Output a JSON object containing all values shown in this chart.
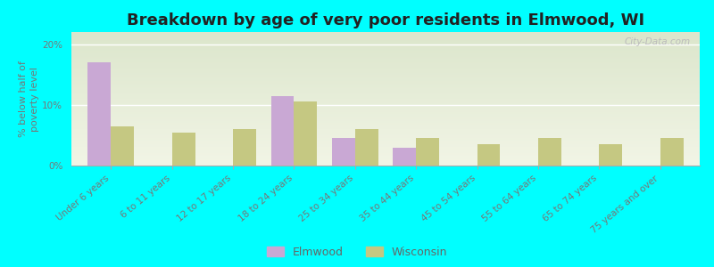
{
  "title": "Breakdown by age of very poor residents in Elmwood, WI",
  "ylabel": "% below half of\npoverty level",
  "background_color": "#00FFFF",
  "plot_bg_top": "#dce6cc",
  "plot_bg_bottom": "#f0f5e8",
  "categories": [
    "Under 6 years",
    "6 to 11 years",
    "12 to 17 years",
    "18 to 24 years",
    "25 to 34 years",
    "35 to 44 years",
    "45 to 54 years",
    "55 to 64 years",
    "65 to 74 years",
    "75 years and over"
  ],
  "elmwood": [
    17.0,
    0.0,
    0.0,
    11.5,
    4.5,
    3.0,
    0.0,
    0.0,
    0.0,
    0.0
  ],
  "wisconsin": [
    6.5,
    5.5,
    6.0,
    10.5,
    6.0,
    4.5,
    3.5,
    4.5,
    3.5,
    4.5
  ],
  "elmwood_color": "#c9a8d4",
  "wisconsin_color": "#c5c882",
  "ylim": [
    0,
    22
  ],
  "yticks": [
    0,
    10,
    20
  ],
  "ytick_labels": [
    "0%",
    "10%",
    "20%"
  ],
  "bar_width": 0.38,
  "title_fontsize": 13,
  "axis_label_fontsize": 8,
  "tick_fontsize": 7.5,
  "legend_fontsize": 9,
  "watermark": "City-Data.com"
}
